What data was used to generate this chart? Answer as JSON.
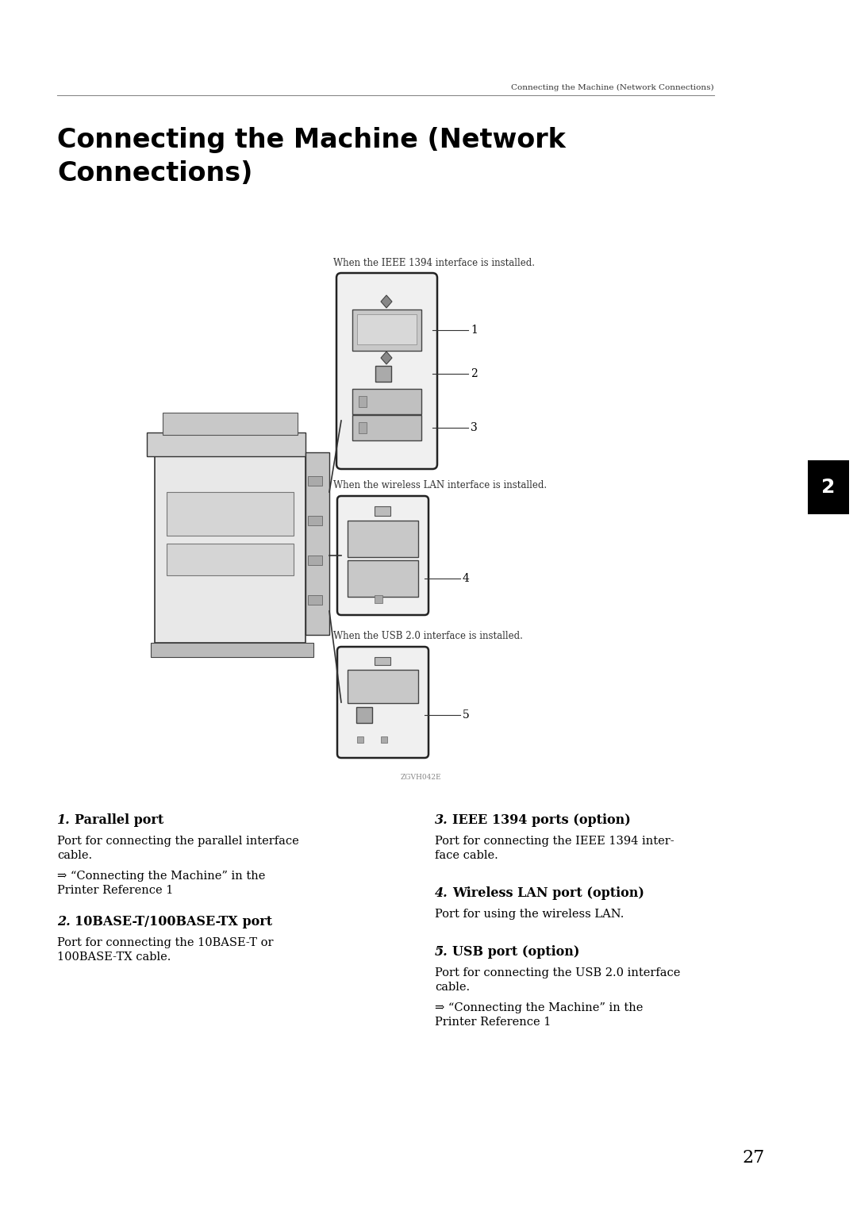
{
  "bg_color": "#ffffff",
  "header_text": "Connecting the Machine (Network Connections)",
  "title_line1": "Connecting the Machine (Network",
  "title_line2": "Connections)",
  "tab_label": "2",
  "caption1": "When the IEEE 1394 interface is installed.",
  "caption2": "When the wireless LAN interface is installed.",
  "caption3": "When the USB 2.0 interface is installed.",
  "image_label": "ZGVH042E",
  "s1_num": "1.",
  "s1_title": "Parallel port",
  "s1_body1": "Port for connecting the parallel interface",
  "s1_body2": "cable.",
  "s1_body3": "⇒ “Connecting the Machine” in the",
  "s1_body4": "Printer Reference 1",
  "s2_num": "2.",
  "s2_title": "10BASE-T/100BASE-TX port",
  "s2_body1": "Port for connecting the 10BASE-T or",
  "s2_body2": "100BASE-TX cable.",
  "s3_num": "3.",
  "s3_title": "IEEE 1394 ports (option)",
  "s3_body1": "Port for connecting the IEEE 1394 inter-",
  "s3_body2": "face cable.",
  "s4_num": "4.",
  "s4_title": "Wireless LAN port (option)",
  "s4_body1": "Port for using the wireless LAN.",
  "s5_num": "5.",
  "s5_title": "USB port (option)",
  "s5_body1": "Port for connecting the USB 2.0 interface",
  "s5_body2": "cable.",
  "s5_body3": "⇒ “Connecting the Machine” in the",
  "s5_body4": "Printer Reference 1",
  "page_number": "27"
}
